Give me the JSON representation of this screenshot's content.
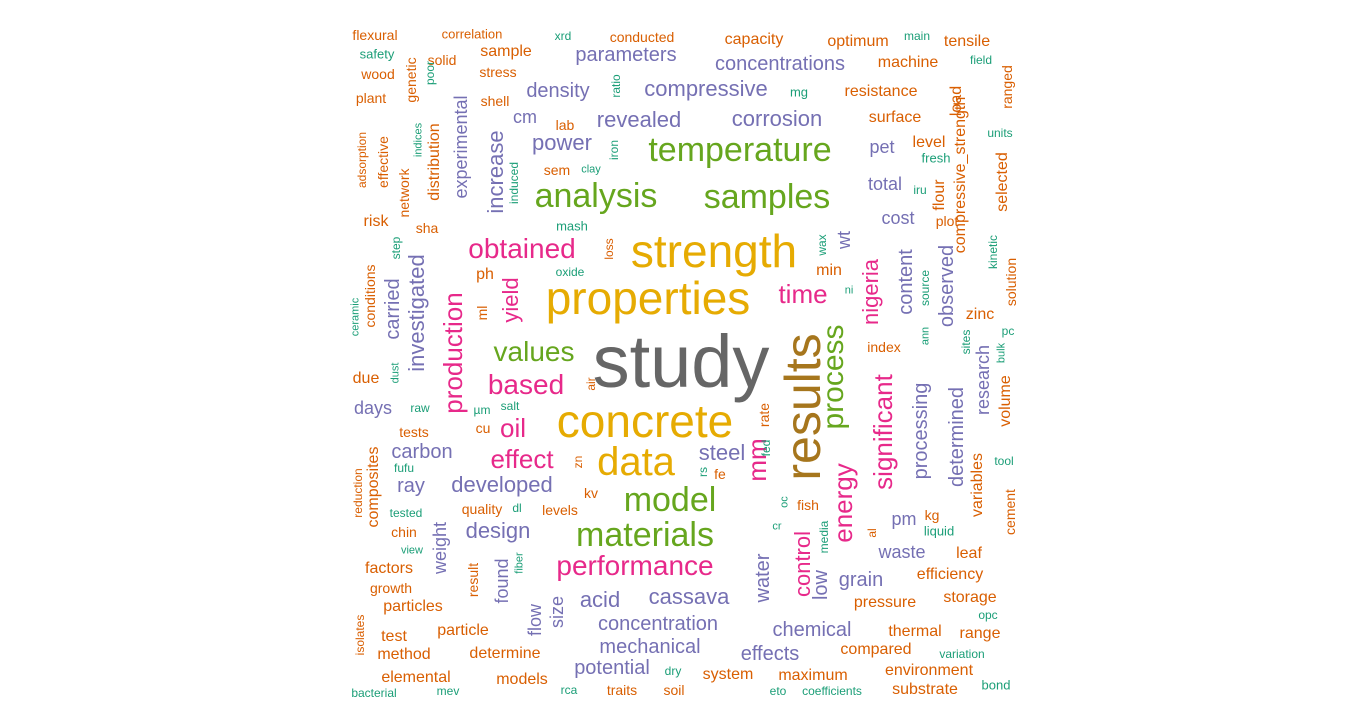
{
  "colors": {
    "green": "#1B9E77",
    "orange": "#D95F02",
    "purple": "#7570B3",
    "magenta": "#E7298A",
    "lime": "#66A61E",
    "yellow": "#E6AB02",
    "brown": "#A6761D",
    "gray": "#666666"
  },
  "words": [
    {
      "text": "study",
      "color": "gray"
    },
    {
      "text": "results",
      "color": "brown"
    },
    {
      "text": "strength",
      "color": "yellow"
    },
    {
      "text": "properties",
      "color": "yellow"
    },
    {
      "text": "concrete",
      "color": "yellow"
    },
    {
      "text": "data",
      "color": "yellow"
    },
    {
      "text": "analysis",
      "color": "lime"
    },
    {
      "text": "samples",
      "color": "lime"
    },
    {
      "text": "temperature",
      "color": "lime"
    },
    {
      "text": "model",
      "color": "lime"
    },
    {
      "text": "materials",
      "color": "lime"
    },
    {
      "text": "process",
      "color": "lime"
    },
    {
      "text": "values",
      "color": "lime"
    },
    {
      "text": "performance",
      "color": "magenta"
    },
    {
      "text": "obtained",
      "color": "magenta"
    },
    {
      "text": "based",
      "color": "magenta"
    },
    {
      "text": "effect",
      "color": "magenta"
    },
    {
      "text": "oil",
      "color": "magenta"
    },
    {
      "text": "time",
      "color": "magenta"
    },
    {
      "text": "mm",
      "color": "magenta"
    },
    {
      "text": "energy",
      "color": "magenta"
    },
    {
      "text": "nigeria",
      "color": "magenta"
    },
    {
      "text": "significant",
      "color": "magenta"
    },
    {
      "text": "production",
      "color": "magenta"
    },
    {
      "text": "yield",
      "color": "magenta"
    },
    {
      "text": "control",
      "color": "magenta"
    },
    {
      "text": "increase",
      "color": "purple"
    },
    {
      "text": "power",
      "color": "purple"
    },
    {
      "text": "revealed",
      "color": "purple"
    },
    {
      "text": "corrosion",
      "color": "purple"
    },
    {
      "text": "density",
      "color": "purple"
    },
    {
      "text": "compressive",
      "color": "purple"
    },
    {
      "text": "concentrations",
      "color": "purple"
    },
    {
      "text": "parameters",
      "color": "purple"
    },
    {
      "text": "cm",
      "color": "purple"
    },
    {
      "text": "experimental",
      "color": "purple"
    },
    {
      "text": "investigated",
      "color": "purple"
    },
    {
      "text": "carried",
      "color": "purple"
    },
    {
      "text": "steel",
      "color": "purple"
    },
    {
      "text": "developed",
      "color": "purple"
    },
    {
      "text": "design",
      "color": "purple"
    },
    {
      "text": "carbon",
      "color": "purple"
    },
    {
      "text": "ray",
      "color": "purple"
    },
    {
      "text": "cassava",
      "color": "purple"
    },
    {
      "text": "acid",
      "color": "purple"
    },
    {
      "text": "concentration",
      "color": "purple"
    },
    {
      "text": "mechanical",
      "color": "purple"
    },
    {
      "text": "potential",
      "color": "purple"
    },
    {
      "text": "chemical",
      "color": "purple"
    },
    {
      "text": "effects",
      "color": "purple"
    },
    {
      "text": "water",
      "color": "purple"
    },
    {
      "text": "low",
      "color": "purple"
    },
    {
      "text": "grain",
      "color": "purple"
    },
    {
      "text": "waste",
      "color": "purple"
    },
    {
      "text": "pm",
      "color": "purple"
    },
    {
      "text": "processing",
      "color": "purple"
    },
    {
      "text": "determined",
      "color": "purple"
    },
    {
      "text": "research",
      "color": "purple"
    },
    {
      "text": "observed",
      "color": "purple"
    },
    {
      "text": "content",
      "color": "purple"
    },
    {
      "text": "cost",
      "color": "purple"
    },
    {
      "text": "total",
      "color": "purple"
    },
    {
      "text": "pet",
      "color": "purple"
    },
    {
      "text": "wt",
      "color": "purple"
    },
    {
      "text": "days",
      "color": "purple"
    },
    {
      "text": "weight",
      "color": "purple"
    },
    {
      "text": "found",
      "color": "purple"
    },
    {
      "text": "size",
      "color": "purple"
    },
    {
      "text": "flow",
      "color": "purple"
    },
    {
      "text": "capacity",
      "color": "orange"
    },
    {
      "text": "optimum",
      "color": "orange"
    },
    {
      "text": "tensile",
      "color": "orange"
    },
    {
      "text": "machine",
      "color": "orange"
    },
    {
      "text": "resistance",
      "color": "orange"
    },
    {
      "text": "surface",
      "color": "orange"
    },
    {
      "text": "level",
      "color": "orange"
    },
    {
      "text": "flexural",
      "color": "orange"
    },
    {
      "text": "correlation",
      "color": "orange"
    },
    {
      "text": "conducted",
      "color": "orange"
    },
    {
      "text": "sample",
      "color": "orange"
    },
    {
      "text": "solid",
      "color": "orange"
    },
    {
      "text": "stress",
      "color": "orange"
    },
    {
      "text": "wood",
      "color": "orange"
    },
    {
      "text": "plant",
      "color": "orange"
    },
    {
      "text": "genetic",
      "color": "orange"
    },
    {
      "text": "shell",
      "color": "orange"
    },
    {
      "text": "lab",
      "color": "orange"
    },
    {
      "text": "sem",
      "color": "orange"
    },
    {
      "text": "distribution",
      "color": "orange"
    },
    {
      "text": "network",
      "color": "orange"
    },
    {
      "text": "effective",
      "color": "orange"
    },
    {
      "text": "adsorption",
      "color": "orange"
    },
    {
      "text": "risk",
      "color": "orange"
    },
    {
      "text": "sha",
      "color": "orange"
    },
    {
      "text": "conditions",
      "color": "orange"
    },
    {
      "text": "ph",
      "color": "orange"
    },
    {
      "text": "ml",
      "color": "orange"
    },
    {
      "text": "loss",
      "color": "orange"
    },
    {
      "text": "due",
      "color": "orange"
    },
    {
      "text": "air",
      "color": "orange"
    },
    {
      "text": "tests",
      "color": "orange"
    },
    {
      "text": "cu",
      "color": "orange"
    },
    {
      "text": "zn",
      "color": "orange"
    },
    {
      "text": "kv",
      "color": "orange"
    },
    {
      "text": "fe",
      "color": "orange"
    },
    {
      "text": "rate",
      "color": "orange"
    },
    {
      "text": "fish",
      "color": "orange"
    },
    {
      "text": "composites",
      "color": "orange"
    },
    {
      "text": "reduction",
      "color": "orange"
    },
    {
      "text": "chin",
      "color": "orange"
    },
    {
      "text": "quality",
      "color": "orange"
    },
    {
      "text": "levels",
      "color": "orange"
    },
    {
      "text": "factors",
      "color": "orange"
    },
    {
      "text": "growth",
      "color": "orange"
    },
    {
      "text": "particles",
      "color": "orange"
    },
    {
      "text": "test",
      "color": "orange"
    },
    {
      "text": "method",
      "color": "orange"
    },
    {
      "text": "particle",
      "color": "orange"
    },
    {
      "text": "determine",
      "color": "orange"
    },
    {
      "text": "result",
      "color": "orange"
    },
    {
      "text": "isolates",
      "color": "orange"
    },
    {
      "text": "elemental",
      "color": "orange"
    },
    {
      "text": "models",
      "color": "orange"
    },
    {
      "text": "traits",
      "color": "orange"
    },
    {
      "text": "soil",
      "color": "orange"
    },
    {
      "text": "system",
      "color": "orange"
    },
    {
      "text": "maximum",
      "color": "orange"
    },
    {
      "text": "compared",
      "color": "orange"
    },
    {
      "text": "environment",
      "color": "orange"
    },
    {
      "text": "substrate",
      "color": "orange"
    },
    {
      "text": "pressure",
      "color": "orange"
    },
    {
      "text": "thermal",
      "color": "orange"
    },
    {
      "text": "range",
      "color": "orange"
    },
    {
      "text": "storage",
      "color": "orange"
    },
    {
      "text": "efficiency",
      "color": "orange"
    },
    {
      "text": "leaf",
      "color": "orange"
    },
    {
      "text": "kg",
      "color": "orange"
    },
    {
      "text": "al",
      "color": "orange"
    },
    {
      "text": "min",
      "color": "orange"
    },
    {
      "text": "index",
      "color": "orange"
    },
    {
      "text": "zinc",
      "color": "orange"
    },
    {
      "text": "flour",
      "color": "orange"
    },
    {
      "text": "plot",
      "color": "orange"
    },
    {
      "text": "compressive_strength",
      "color": "orange"
    },
    {
      "text": "load",
      "color": "orange"
    },
    {
      "text": "selected",
      "color": "orange"
    },
    {
      "text": "ranged",
      "color": "orange"
    },
    {
      "text": "solution",
      "color": "orange"
    },
    {
      "text": "volume",
      "color": "orange"
    },
    {
      "text": "variables",
      "color": "orange"
    },
    {
      "text": "cement",
      "color": "orange"
    },
    {
      "text": "xrd",
      "color": "green"
    },
    {
      "text": "main",
      "color": "green"
    },
    {
      "text": "field",
      "color": "green"
    },
    {
      "text": "safety",
      "color": "green"
    },
    {
      "text": "poor",
      "color": "green"
    },
    {
      "text": "ratio",
      "color": "green"
    },
    {
      "text": "mg",
      "color": "green"
    },
    {
      "text": "units",
      "color": "green"
    },
    {
      "text": "indices",
      "color": "green"
    },
    {
      "text": "induced",
      "color": "green"
    },
    {
      "text": "clay",
      "color": "green"
    },
    {
      "text": "iron",
      "color": "green"
    },
    {
      "text": "fresh",
      "color": "green"
    },
    {
      "text": "iru",
      "color": "green"
    },
    {
      "text": "mash",
      "color": "green"
    },
    {
      "text": "step",
      "color": "green"
    },
    {
      "text": "oxide",
      "color": "green"
    },
    {
      "text": "wax",
      "color": "green"
    },
    {
      "text": "kinetic",
      "color": "green"
    },
    {
      "text": "ni",
      "color": "green"
    },
    {
      "text": "source",
      "color": "green"
    },
    {
      "text": "ann",
      "color": "green"
    },
    {
      "text": "sites",
      "color": "green"
    },
    {
      "text": "bulk",
      "color": "green"
    },
    {
      "text": "pc",
      "color": "green"
    },
    {
      "text": "ceramic",
      "color": "green"
    },
    {
      "text": "dust",
      "color": "green"
    },
    {
      "text": "raw",
      "color": "green"
    },
    {
      "text": "salt",
      "color": "green"
    },
    {
      "text": "µm",
      "color": "green"
    },
    {
      "text": "fufu",
      "color": "green"
    },
    {
      "text": "rs",
      "color": "green"
    },
    {
      "text": "fed",
      "color": "green"
    },
    {
      "text": "oc",
      "color": "green"
    },
    {
      "text": "cr",
      "color": "green"
    },
    {
      "text": "media",
      "color": "green"
    },
    {
      "text": "liquid",
      "color": "green"
    },
    {
      "text": "tool",
      "color": "green"
    },
    {
      "text": "tested",
      "color": "green"
    },
    {
      "text": "dl",
      "color": "green"
    },
    {
      "text": "view",
      "color": "green"
    },
    {
      "text": "fiber",
      "color": "green"
    },
    {
      "text": "opc",
      "color": "green"
    },
    {
      "text": "variation",
      "color": "green"
    },
    {
      "text": "dry",
      "color": "green"
    },
    {
      "text": "bacterial",
      "color": "green"
    },
    {
      "text": "mev",
      "color": "green"
    },
    {
      "text": "rca",
      "color": "green"
    },
    {
      "text": "eto",
      "color": "green"
    },
    {
      "text": "coefficients",
      "color": "green"
    },
    {
      "text": "bond",
      "color": "green"
    }
  ]
}
